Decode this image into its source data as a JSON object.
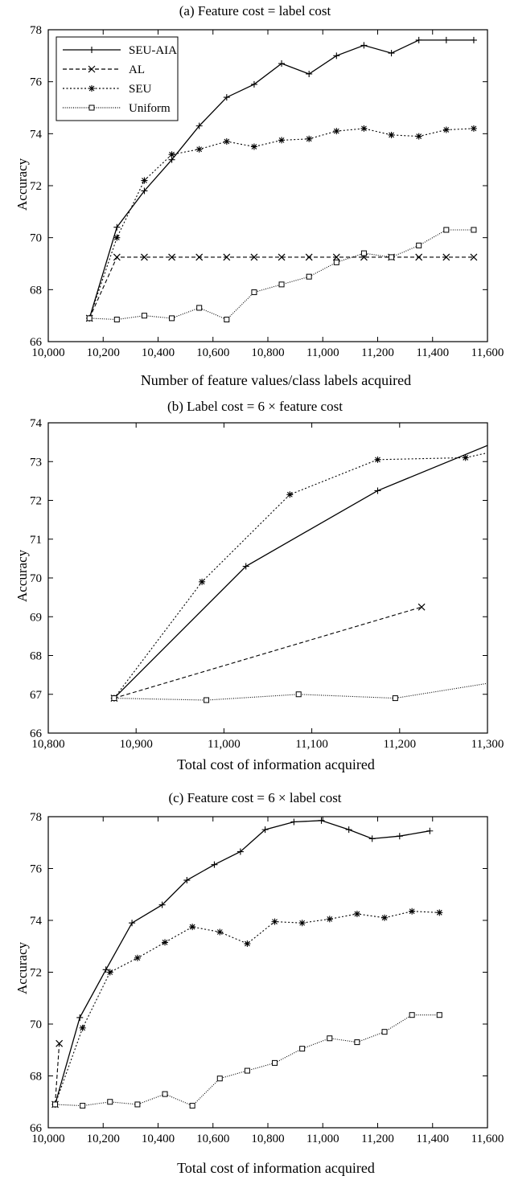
{
  "chart_data": [
    {
      "type": "line",
      "title": "(a) Feature cost = label cost",
      "xlabel": "Number of feature values/class labels acquired",
      "ylabel": "Accuracy",
      "xlim": [
        10000,
        11600
      ],
      "ylim": [
        66,
        78
      ],
      "xticks": [
        10000,
        10200,
        10400,
        10600,
        10800,
        11000,
        11200,
        11400,
        11600
      ],
      "xtick_labels": [
        "10,000",
        "10,200",
        "10,400",
        "10,600",
        "10,800",
        "11,000",
        "11,200",
        "11,400",
        "11,600"
      ],
      "yticks": [
        66,
        68,
        70,
        72,
        74,
        76,
        78
      ],
      "ytick_labels": [
        "66",
        "68",
        "70",
        "72",
        "74",
        "76",
        "78"
      ],
      "legend_position": "top-left",
      "series": [
        {
          "name": "SEU-AIA",
          "style": "solid",
          "marker": "plus",
          "x": [
            10150,
            10250,
            10350,
            10450,
            10550,
            10650,
            10750,
            10850,
            10950,
            11050,
            11150,
            11250,
            11350,
            11450,
            11550
          ],
          "y": [
            66.9,
            70.4,
            71.8,
            73.0,
            74.3,
            75.4,
            75.9,
            76.7,
            76.3,
            77.0,
            77.4,
            77.1,
            77.6,
            77.6,
            77.6
          ]
        },
        {
          "name": "AL",
          "style": "dashed",
          "marker": "x",
          "x": [
            10150,
            10250,
            10350,
            10450,
            10550,
            10650,
            10750,
            10850,
            10950,
            11050,
            11150,
            11250,
            11350,
            11450,
            11550
          ],
          "y": [
            66.9,
            69.25,
            69.25,
            69.25,
            69.25,
            69.25,
            69.25,
            69.25,
            69.25,
            69.25,
            69.25,
            69.25,
            69.25,
            69.25,
            69.25
          ]
        },
        {
          "name": "SEU",
          "style": "dotted",
          "marker": "star",
          "x": [
            10150,
            10250,
            10350,
            10450,
            10550,
            10650,
            10750,
            10850,
            10950,
            11050,
            11150,
            11250,
            11350,
            11450,
            11550
          ],
          "y": [
            66.9,
            70.0,
            72.2,
            73.2,
            73.4,
            73.7,
            73.5,
            73.75,
            73.8,
            74.1,
            74.2,
            73.95,
            73.9,
            74.15,
            74.2
          ]
        },
        {
          "name": "Uniform",
          "style": "dotted-fine",
          "marker": "square",
          "x": [
            10150,
            10250,
            10350,
            10450,
            10550,
            10650,
            10750,
            10850,
            10950,
            11050,
            11150,
            11250,
            11350,
            11450,
            11550
          ],
          "y": [
            66.9,
            66.85,
            67.0,
            66.9,
            67.3,
            66.85,
            67.9,
            68.2,
            68.5,
            69.05,
            69.4,
            69.25,
            69.7,
            70.3,
            70.3
          ]
        }
      ]
    },
    {
      "type": "line",
      "title": "(b) Label cost = 6 × feature cost",
      "xlabel": "Total cost of information acquired",
      "ylabel": "Accuracy",
      "xlim": [
        10800,
        11300
      ],
      "ylim": [
        66,
        74
      ],
      "xticks": [
        10800,
        10900,
        11000,
        11100,
        11200,
        11300
      ],
      "xtick_labels": [
        "10,800",
        "10,900",
        "11,000",
        "11,100",
        "11,200",
        "11,300"
      ],
      "yticks": [
        66,
        67,
        68,
        69,
        70,
        71,
        72,
        73,
        74
      ],
      "ytick_labels": [
        "66",
        "67",
        "68",
        "69",
        "70",
        "71",
        "72",
        "73",
        "74"
      ],
      "series": [
        {
          "name": "SEU-AIA",
          "style": "solid",
          "marker": "plus",
          "x": [
            10875,
            11025,
            11175,
            11325
          ],
          "y": [
            66.9,
            70.3,
            72.25,
            73.65
          ]
        },
        {
          "name": "AL",
          "style": "dashed",
          "marker": "x",
          "x": [
            10875,
            11225
          ],
          "y": [
            66.9,
            69.25
          ]
        },
        {
          "name": "SEU",
          "style": "dotted",
          "marker": "star",
          "x": [
            10875,
            10975,
            11075,
            11175,
            11275,
            11325
          ],
          "y": [
            66.9,
            69.9,
            72.15,
            73.05,
            73.1,
            73.35
          ]
        },
        {
          "name": "Uniform",
          "style": "dotted-fine",
          "marker": "square",
          "x": [
            10875,
            10980,
            11085,
            11195,
            11305
          ],
          "y": [
            66.9,
            66.85,
            67.0,
            66.9,
            67.3
          ]
        }
      ]
    },
    {
      "type": "line",
      "title": "(c) Feature cost = 6 × label cost",
      "xlabel": "Total cost of information acquired",
      "ylabel": "Accuracy",
      "xlim": [
        10000,
        11600
      ],
      "ylim": [
        66,
        78
      ],
      "xticks": [
        10000,
        10200,
        10400,
        10600,
        10800,
        11000,
        11200,
        11400,
        11600
      ],
      "xtick_labels": [
        "10,000",
        "10,200",
        "10,400",
        "10,600",
        "10,800",
        "11,000",
        "11,200",
        "11,400",
        "11,600"
      ],
      "yticks": [
        66,
        68,
        70,
        72,
        74,
        76,
        78
      ],
      "ytick_labels": [
        "66",
        "68",
        "70",
        "72",
        "74",
        "76",
        "78"
      ],
      "series": [
        {
          "name": "SEU-AIA",
          "style": "solid",
          "marker": "plus",
          "x": [
            10025,
            10115,
            10210,
            10305,
            10415,
            10505,
            10605,
            10700,
            10790,
            10895,
            10995,
            11095,
            11180,
            11280,
            11390
          ],
          "y": [
            66.9,
            70.25,
            72.1,
            73.9,
            74.6,
            75.55,
            76.15,
            76.65,
            77.5,
            77.8,
            77.85,
            77.5,
            77.15,
            77.25,
            77.45
          ]
        },
        {
          "name": "AL",
          "style": "dashed",
          "marker": "x",
          "x": [
            10025,
            10040
          ],
          "y": [
            66.9,
            69.25
          ]
        },
        {
          "name": "SEU",
          "style": "dotted",
          "marker": "star",
          "x": [
            10025,
            10125,
            10225,
            10325,
            10425,
            10525,
            10625,
            10725,
            10825,
            10925,
            11025,
            11125,
            11225,
            11325,
            11425
          ],
          "y": [
            66.9,
            69.85,
            72.0,
            72.55,
            73.15,
            73.75,
            73.55,
            73.1,
            73.95,
            73.9,
            74.05,
            74.25,
            74.1,
            74.35,
            74.3
          ]
        },
        {
          "name": "Uniform",
          "style": "dotted-fine",
          "marker": "square",
          "x": [
            10025,
            10125,
            10225,
            10325,
            10425,
            10525,
            10625,
            10725,
            10825,
            10925,
            11025,
            11125,
            11225,
            11325,
            11425
          ],
          "y": [
            66.9,
            66.85,
            67.0,
            66.9,
            67.3,
            66.85,
            67.9,
            68.2,
            68.5,
            69.05,
            69.45,
            69.3,
            69.7,
            70.35,
            70.35
          ]
        }
      ]
    }
  ]
}
